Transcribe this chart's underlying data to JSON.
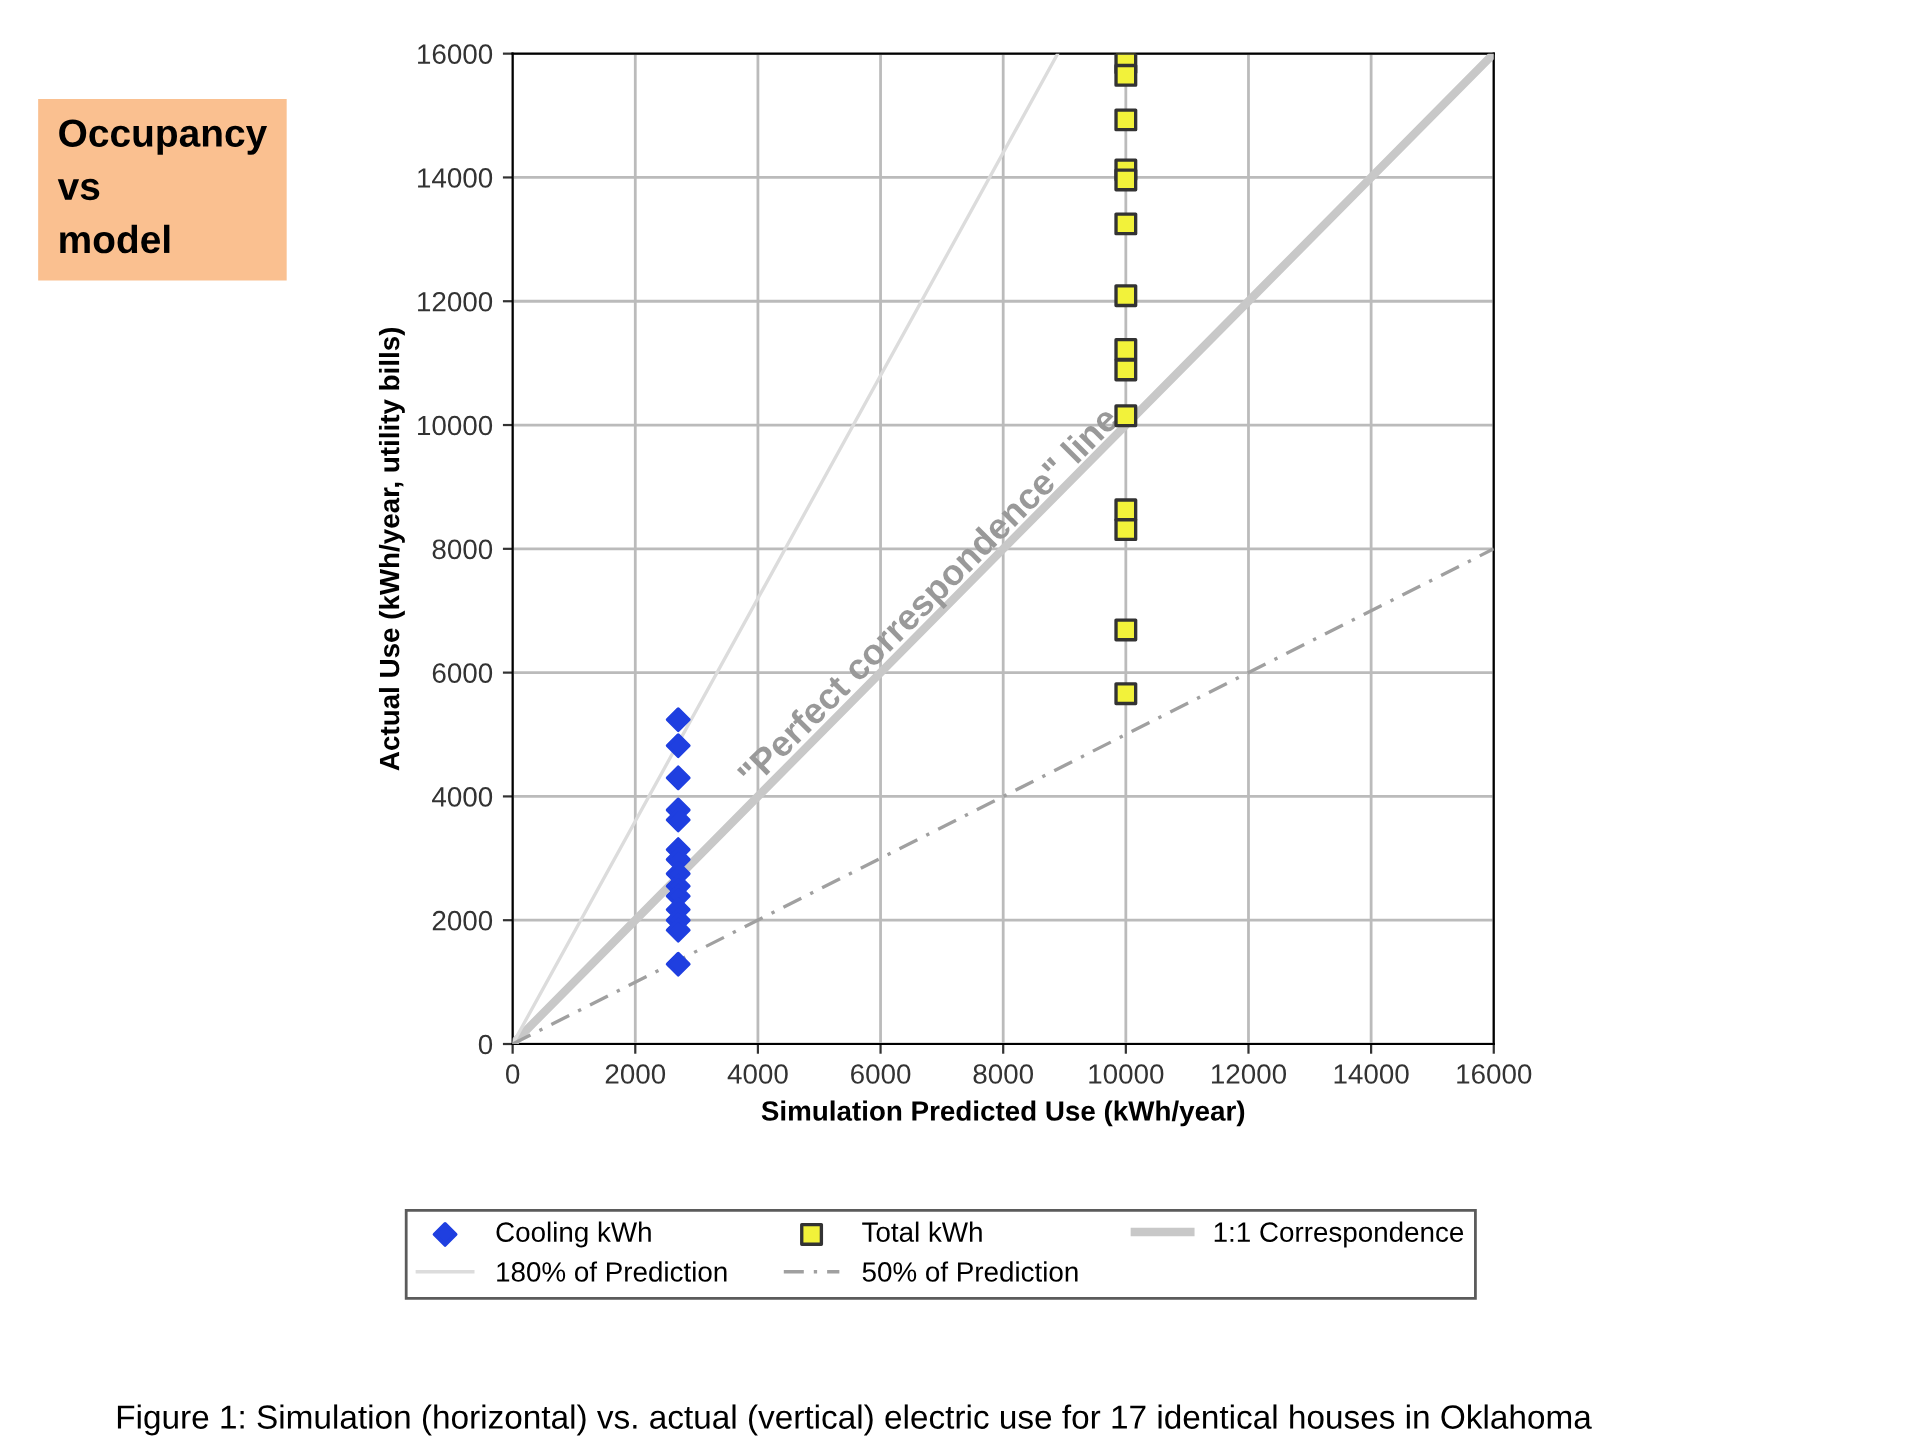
{
  "chart_data": {
    "type": "scatter",
    "xlabel": "Simulation Predicted Use (kWh/year)",
    "ylabel": "Actual Use (kWh/year, utility bills)",
    "xlim": [
      0,
      16000
    ],
    "ylim": [
      0,
      16000
    ],
    "xticks": [
      0,
      2000,
      4000,
      6000,
      8000,
      10000,
      12000,
      14000,
      16000
    ],
    "yticks": [
      0,
      2000,
      4000,
      6000,
      8000,
      10000,
      12000,
      14000,
      16000
    ],
    "grid": true,
    "legend": "bottom",
    "series": [
      {
        "name": "Cooling kWh",
        "marker": "diamond",
        "color": "#1f3fe0",
        "x": [
          2700,
          2700,
          2700,
          2700,
          2700,
          2700,
          2700,
          2700,
          2700,
          2700,
          2700,
          2700,
          2700,
          2700
        ],
        "values": [
          5240,
          4820,
          4300,
          3780,
          3620,
          3140,
          2980,
          2750,
          2550,
          2390,
          2170,
          2000,
          1840,
          1290
        ]
      },
      {
        "name": "Total kWh",
        "marker": "square",
        "color": "#f2f23a",
        "x": [
          10000,
          10000,
          10000,
          10000,
          10000,
          10000,
          10000,
          10000,
          10000,
          10000,
          10000,
          10000,
          10000,
          10000
        ],
        "values": [
          15850,
          15650,
          14930,
          14120,
          13960,
          13250,
          12090,
          11220,
          10890,
          10150,
          8630,
          8310,
          6690,
          5660
        ]
      },
      {
        "name": "1:1 Correspondence",
        "type": "line",
        "marker": "none",
        "line_style": "solid",
        "color": "#c8c8c8",
        "x": [
          0,
          16000
        ],
        "values": [
          0,
          16000
        ]
      },
      {
        "name": "180% of Prediction",
        "type": "line",
        "marker": "none",
        "line_style": "solid",
        "color": "#dcdcdc",
        "x": [
          0,
          8889
        ],
        "values": [
          0,
          16000
        ]
      },
      {
        "name": "50% of Prediction",
        "type": "line",
        "marker": "none",
        "line_style": "dashed",
        "color": "#a0a0a0",
        "x": [
          0,
          16000
        ],
        "values": [
          0,
          8000
        ]
      }
    ],
    "annotations": [
      {
        "text": "\"Perfect correspondence\" line",
        "x": 7000,
        "y": 7000
      },
      "Occupancy\nvs\nmodel",
      "Figure 1: Simulation (horizontal) vs. actual (vertical) electric use for 17 identical houses in Oklahoma"
    ]
  }
}
